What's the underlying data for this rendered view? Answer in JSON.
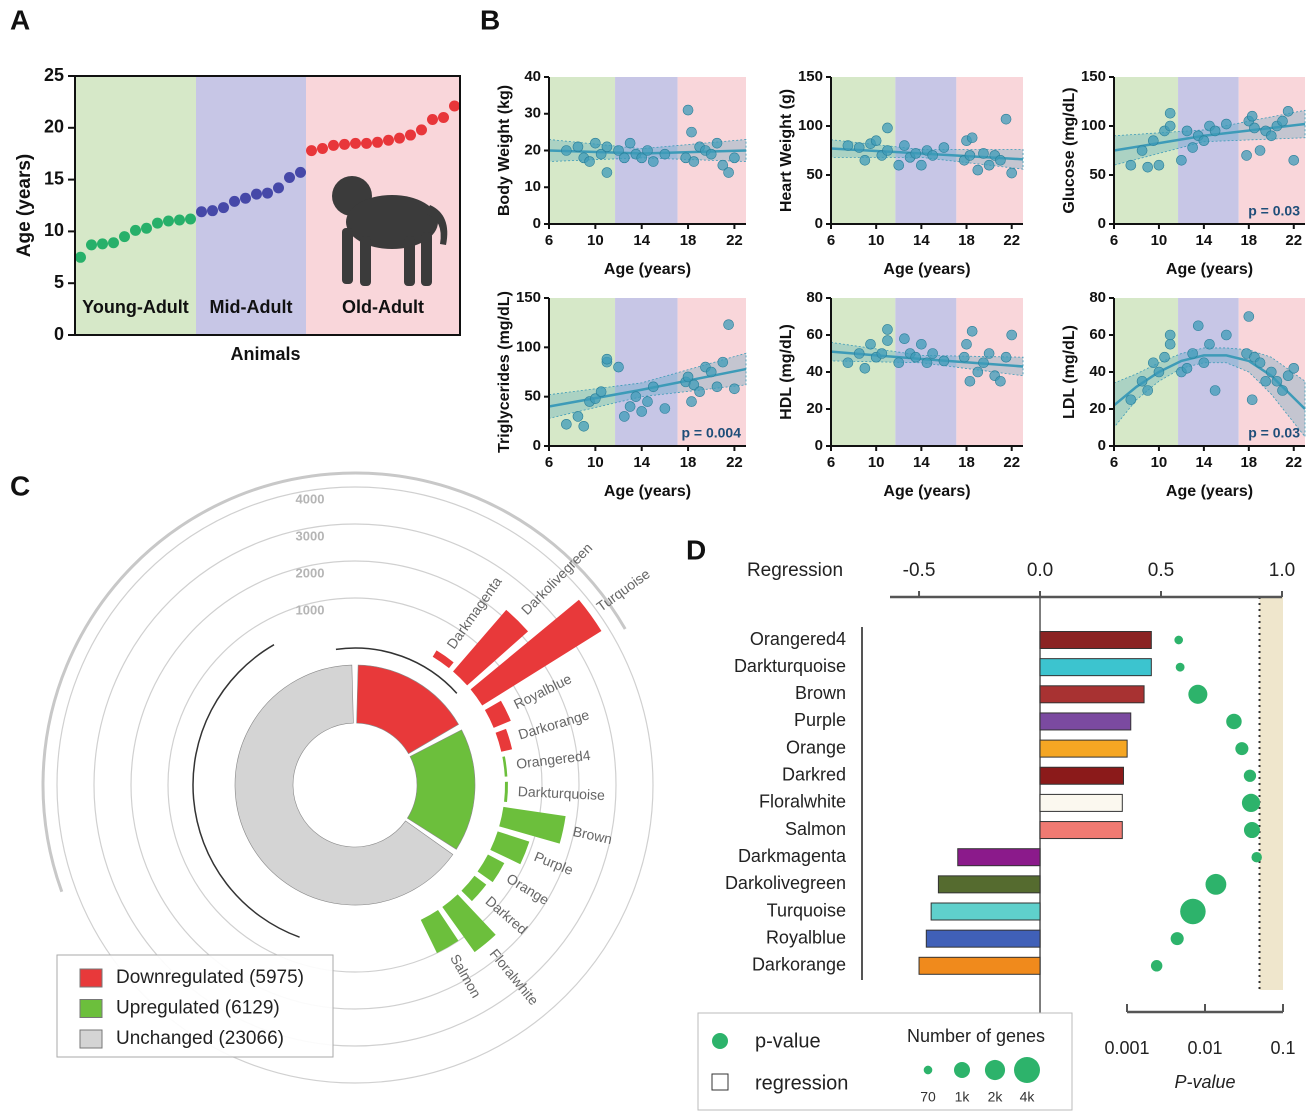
{
  "chart_data": [
    {
      "type": "scatter",
      "panel_label": "A",
      "y_label": "Age (years)",
      "x_label": "Animals",
      "ylim": [
        0,
        25
      ],
      "yticks": [
        0,
        5,
        10,
        15,
        20,
        25
      ],
      "series": [
        {
          "name": "Young-Adult",
          "color": "#27b06a",
          "band": "#d6e8c8",
          "values": [
            7.5,
            8.7,
            8.8,
            8.9,
            9.5,
            10.1,
            10.3,
            10.8,
            11.0,
            11.1,
            11.2
          ]
        },
        {
          "name": "Mid-Adult",
          "color": "#4648a8",
          "band": "#c7c6e6",
          "values": [
            11.9,
            12.0,
            12.3,
            12.9,
            13.2,
            13.6,
            13.7,
            14.2,
            15.2,
            15.7
          ]
        },
        {
          "name": "Old-Adult",
          "color": "#e8363a",
          "band": "#f9d6da",
          "values": [
            17.8,
            18.0,
            18.3,
            18.4,
            18.5,
            18.5,
            18.6,
            18.8,
            19.0,
            19.3,
            19.8,
            20.8,
            21.0,
            22.1
          ]
        }
      ]
    },
    {
      "type": "regression",
      "panel_label": "B",
      "y_label": "Body Weight (kg)",
      "x_label": "Age (years)",
      "color": "#3d9bb8",
      "xlim": [
        6,
        23
      ],
      "xticks": [
        6,
        10,
        14,
        18,
        22
      ],
      "ylim": [
        0,
        40
      ],
      "yticks": [
        0,
        10,
        20,
        30,
        40
      ],
      "bands": [
        {
          "from": 6,
          "to": 11.7,
          "color": "#d6e8c8"
        },
        {
          "from": 11.7,
          "to": 17.1,
          "color": "#c7c6e6"
        },
        {
          "from": 17.1,
          "to": 23,
          "color": "#f9d6da"
        }
      ],
      "x": [
        7.5,
        8.5,
        9,
        9.5,
        10,
        10.5,
        11,
        11,
        12,
        12.5,
        13,
        13.5,
        14,
        14.5,
        15,
        16,
        17.8,
        18,
        18.3,
        18.5,
        19,
        19.5,
        20,
        20.5,
        21,
        21.5,
        22
      ],
      "values": [
        20,
        21,
        18,
        17,
        22,
        19,
        14,
        21,
        20,
        18,
        22,
        19,
        18,
        20,
        17,
        19,
        18,
        31,
        25,
        17,
        21,
        20,
        19,
        22,
        16,
        14,
        18
      ],
      "fit": {
        "x": [
          6,
          14,
          23
        ],
        "values": [
          20,
          19.2,
          20
        ],
        "lower": [
          17,
          18,
          17
        ],
        "upper": [
          23,
          20.5,
          23
        ]
      }
    },
    {
      "type": "regression",
      "y_label": "Heart Weight (g)",
      "x_label": "Age (years)",
      "color": "#3d9bb8",
      "xlim": [
        6,
        23
      ],
      "xticks": [
        6,
        10,
        14,
        18,
        22
      ],
      "ylim": [
        0,
        150
      ],
      "yticks": [
        0,
        50,
        100,
        150
      ],
      "bands": [
        {
          "from": 6,
          "to": 11.7,
          "color": "#d6e8c8"
        },
        {
          "from": 11.7,
          "to": 17.1,
          "color": "#c7c6e6"
        },
        {
          "from": 17.1,
          "to": 23,
          "color": "#f9d6da"
        }
      ],
      "x": [
        7.5,
        8.5,
        9,
        9.5,
        10,
        10.5,
        11,
        11,
        12,
        12.5,
        13,
        13.5,
        14,
        14.5,
        15,
        16,
        17.8,
        18,
        18.3,
        18.5,
        19,
        19.5,
        20,
        20.5,
        21,
        21.5,
        22
      ],
      "values": [
        80,
        78,
        65,
        82,
        85,
        70,
        98,
        75,
        60,
        80,
        68,
        72,
        60,
        75,
        70,
        78,
        65,
        85,
        70,
        88,
        55,
        72,
        60,
        70,
        65,
        107,
        52
      ],
      "fit": {
        "x": [
          6,
          14,
          23
        ],
        "values": [
          77,
          72,
          66
        ],
        "lower": [
          68,
          68,
          56
        ],
        "upper": [
          86,
          76,
          76
        ]
      }
    },
    {
      "type": "regression",
      "y_label": "Glucose (mg/dL)",
      "x_label": "Age (years)",
      "color": "#3d9bb8",
      "annotation": "p = 0.03",
      "xlim": [
        6,
        23
      ],
      "xticks": [
        6,
        10,
        14,
        18,
        22
      ],
      "ylim": [
        0,
        150
      ],
      "yticks": [
        0,
        50,
        100,
        150
      ],
      "bands": [
        {
          "from": 6,
          "to": 11.7,
          "color": "#d6e8c8"
        },
        {
          "from": 11.7,
          "to": 17.1,
          "color": "#c7c6e6"
        },
        {
          "from": 17.1,
          "to": 23,
          "color": "#f9d6da"
        }
      ],
      "x": [
        7.5,
        8.5,
        9,
        9.5,
        10,
        10.5,
        11,
        11,
        12,
        12.5,
        13,
        13.5,
        14,
        14.5,
        15,
        16,
        17.8,
        18,
        18.3,
        18.5,
        19,
        19.5,
        20,
        20.5,
        21,
        21.5,
        22
      ],
      "values": [
        60,
        75,
        58,
        85,
        60,
        95,
        113,
        100,
        65,
        95,
        78,
        90,
        85,
        100,
        95,
        102,
        70,
        105,
        110,
        98,
        75,
        95,
        90,
        100,
        105,
        115,
        65
      ],
      "fit": {
        "x": [
          6,
          14,
          23
        ],
        "values": [
          75,
          90,
          102
        ],
        "lower": [
          60,
          84,
          88
        ],
        "upper": [
          90,
          96,
          116
        ]
      }
    },
    {
      "type": "regression",
      "y_label": "Triglycerides (mg/dL)",
      "x_label": "Age (years)",
      "color": "#3d9bb8",
      "annotation": "p = 0.004",
      "xlim": [
        6,
        23
      ],
      "xticks": [
        6,
        10,
        14,
        18,
        22
      ],
      "ylim": [
        0,
        150
      ],
      "yticks": [
        0,
        50,
        100,
        150
      ],
      "bands": [
        {
          "from": 6,
          "to": 11.7,
          "color": "#d6e8c8"
        },
        {
          "from": 11.7,
          "to": 17.1,
          "color": "#c7c6e6"
        },
        {
          "from": 17.1,
          "to": 23,
          "color": "#f9d6da"
        }
      ],
      "x": [
        7.5,
        8.5,
        9,
        9.5,
        10,
        10.5,
        11,
        11,
        12,
        12.5,
        13,
        13.5,
        14,
        14.5,
        15,
        16,
        17.8,
        18,
        18.3,
        18.5,
        19,
        19.5,
        20,
        20.5,
        21,
        21.5,
        22
      ],
      "values": [
        22,
        30,
        20,
        45,
        48,
        55,
        85,
        88,
        80,
        30,
        40,
        50,
        35,
        45,
        60,
        38,
        65,
        70,
        45,
        62,
        55,
        80,
        75,
        60,
        85,
        123,
        58
      ],
      "fit": {
        "x": [
          6,
          14,
          23
        ],
        "values": [
          40,
          57,
          78
        ],
        "lower": [
          28,
          50,
          62
        ],
        "upper": [
          52,
          64,
          94
        ]
      }
    },
    {
      "type": "regression",
      "y_label": "HDL (mg/dL)",
      "x_label": "Age (years)",
      "color": "#3d9bb8",
      "xlim": [
        6,
        23
      ],
      "xticks": [
        6,
        10,
        14,
        18,
        22
      ],
      "ylim": [
        0,
        80
      ],
      "yticks": [
        0,
        20,
        40,
        60,
        80
      ],
      "bands": [
        {
          "from": 6,
          "to": 11.7,
          "color": "#d6e8c8"
        },
        {
          "from": 11.7,
          "to": 17.1,
          "color": "#c7c6e6"
        },
        {
          "from": 17.1,
          "to": 23,
          "color": "#f9d6da"
        }
      ],
      "x": [
        7.5,
        8.5,
        9,
        9.5,
        10,
        10.5,
        11,
        11,
        12,
        12.5,
        13,
        13.5,
        14,
        14.5,
        15,
        16,
        17.8,
        18,
        18.3,
        18.5,
        19,
        19.5,
        20,
        20.5,
        21,
        21.5,
        22
      ],
      "values": [
        45,
        50,
        42,
        55,
        48,
        50,
        63,
        57,
        45,
        58,
        50,
        48,
        55,
        45,
        50,
        46,
        48,
        55,
        35,
        62,
        40,
        45,
        50,
        38,
        35,
        48,
        60
      ],
      "fit": {
        "x": [
          6,
          14,
          23
        ],
        "values": [
          51,
          47,
          43
        ],
        "lower": [
          46,
          45,
          38
        ],
        "upper": [
          56,
          49,
          48
        ]
      }
    },
    {
      "type": "regression",
      "y_label": "LDL (mg/dL)",
      "x_label": "Age (years)",
      "color": "#3d9bb8",
      "annotation": "p = 0.03",
      "xlim": [
        6,
        23
      ],
      "xticks": [
        6,
        10,
        14,
        18,
        22
      ],
      "ylim": [
        0,
        80
      ],
      "yticks": [
        0,
        20,
        40,
        60,
        80
      ],
      "bands": [
        {
          "from": 6,
          "to": 11.7,
          "color": "#d6e8c8"
        },
        {
          "from": 11.7,
          "to": 17.1,
          "color": "#c7c6e6"
        },
        {
          "from": 17.1,
          "to": 23,
          "color": "#f9d6da"
        }
      ],
      "x": [
        7.5,
        8.5,
        9,
        9.5,
        10,
        10.5,
        11,
        11,
        12,
        12.5,
        13,
        13.5,
        14,
        14.5,
        15,
        16,
        17.8,
        18,
        18.3,
        18.5,
        19,
        19.5,
        20,
        20.5,
        21,
        21.5,
        22
      ],
      "values": [
        25,
        35,
        30,
        45,
        40,
        48,
        60,
        55,
        40,
        42,
        50,
        65,
        45,
        55,
        30,
        60,
        50,
        70,
        25,
        48,
        45,
        35,
        40,
        35,
        30,
        38,
        42
      ],
      "fit": {
        "x": [
          6,
          8,
          10,
          12,
          14,
          16,
          18,
          20,
          23
        ],
        "values": [
          22,
          32,
          40,
          46,
          49,
          49,
          46,
          38,
          20
        ],
        "lower": [
          10,
          25,
          35,
          42,
          45,
          45,
          40,
          28,
          5
        ],
        "upper": [
          34,
          39,
          45,
          50,
          53,
          53,
          52,
          48,
          35
        ]
      }
    },
    {
      "type": "radial",
      "panel_label": "C",
      "categories": [
        "Darkmagenta",
        "Darkolivegreen",
        "Turquoise",
        "Royalblue",
        "Darkorange",
        "Orangered4",
        "Darkturquoise",
        "Brown",
        "Purple",
        "Orange",
        "Darkred",
        "Floralwhite",
        "Salmon"
      ],
      "values": [
        200,
        2200,
        3800,
        500,
        300,
        70,
        80,
        1700,
        900,
        500,
        400,
        1500,
        1000
      ],
      "colors": [
        "#e8393a",
        "#e8393a",
        "#e8393a",
        "#e8393a",
        "#e8393a",
        "#6cbf3c",
        "#6cbf3c",
        "#6cbf3c",
        "#6cbf3c",
        "#6cbf3c",
        "#6cbf3c",
        "#6cbf3c",
        "#6cbf3c"
      ],
      "rlim": [
        0,
        4000
      ],
      "rticks": [
        1000,
        2000,
        3000,
        4000
      ],
      "series": [
        {
          "name": "Downregulated (5975)",
          "value": 5975,
          "color": "#e8393a"
        },
        {
          "name": "Upregulated (6129)",
          "value": 6129,
          "color": "#6cbf3c"
        },
        {
          "name": "Unchanged (23066)",
          "value": 23066,
          "color": "#d4d4d4"
        }
      ]
    },
    {
      "type": "bar",
      "panel_label": "D",
      "x_label": "Regression",
      "p_label": "P-value",
      "categories": [
        "Orangered4",
        "Darkturquoise",
        "Brown",
        "Purple",
        "Orange",
        "Darkred",
        "Floralwhite",
        "Salmon",
        "Darkmagenta",
        "Darkolivegreen",
        "Turquoise",
        "Royalblue",
        "Darkorange"
      ],
      "values": [
        0.46,
        0.46,
        0.43,
        0.375,
        0.36,
        0.345,
        0.34,
        0.34,
        -0.34,
        -0.42,
        -0.45,
        -0.47,
        -0.5
      ],
      "colors": [
        "#8b2323",
        "#3cc4cf",
        "#a83232",
        "#7b4aa0",
        "#f5a623",
        "#8b1a1a",
        "#fbf8ef",
        "#f07a72",
        "#8b1a8b",
        "#556b2f",
        "#5fd0cc",
        "#4060b8",
        "#f08a1c"
      ],
      "xlim": [
        -0.62,
        1.0
      ],
      "xticks": [
        -0.5,
        {
          "value": 0,
          "label": "0.0"
        },
        0.5,
        {
          "value": 1,
          "label": "1.0"
        }
      ],
      "pvalues": [
        0.0046,
        0.0048,
        0.0081,
        0.0235,
        0.0297,
        0.0377,
        0.0389,
        0.04,
        0.046,
        0.0138,
        0.007,
        0.0044,
        0.0024
      ],
      "sizes": [
        70,
        80,
        1700,
        900,
        500,
        400,
        1500,
        1000,
        200,
        2200,
        3800,
        500,
        300
      ],
      "plim": [
        0.001,
        0.1
      ],
      "pticks": [
        0.001,
        0.01,
        0.1
      ],
      "p_log": true,
      "threshold": 0.05,
      "p_color": "#2db36b",
      "legend": {
        "p_value": "p-value",
        "regression": "regression",
        "sizes_title": "Number of genes"
      },
      "size_ticks": [
        70,
        {
          "value": 1000,
          "label": "1k"
        },
        {
          "value": 2000,
          "label": "2k"
        },
        {
          "value": 4000,
          "label": "4k"
        }
      ]
    }
  ]
}
